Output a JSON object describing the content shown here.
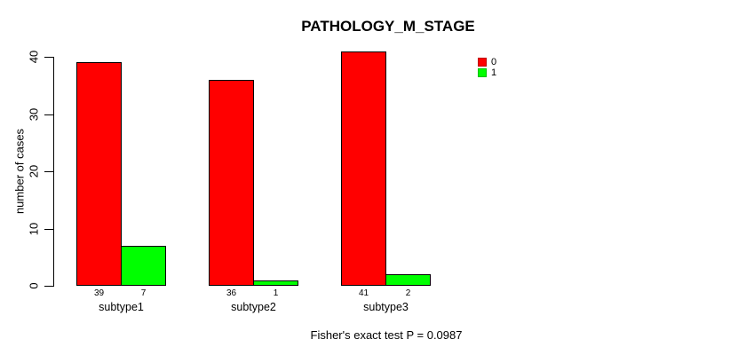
{
  "chart_data": {
    "type": "bar",
    "title": "PATHOLOGY_M_STAGE",
    "ylabel": "number of cases",
    "xlabel": "",
    "categories": [
      "subtype1",
      "subtype2",
      "subtype3"
    ],
    "series": [
      {
        "name": "0",
        "color": "#ff0000",
        "values": [
          39,
          36,
          41
        ]
      },
      {
        "name": "1",
        "color": "#00ff00",
        "values": [
          7,
          1,
          2
        ]
      }
    ],
    "bar_value_labels_shown": true,
    "yticks": [
      0,
      10,
      20,
      30,
      40
    ],
    "ylim": [
      0,
      41
    ],
    "grid": false,
    "legend_position": "top-right",
    "annotation": "Fisher's exact test P = 0.0987"
  }
}
